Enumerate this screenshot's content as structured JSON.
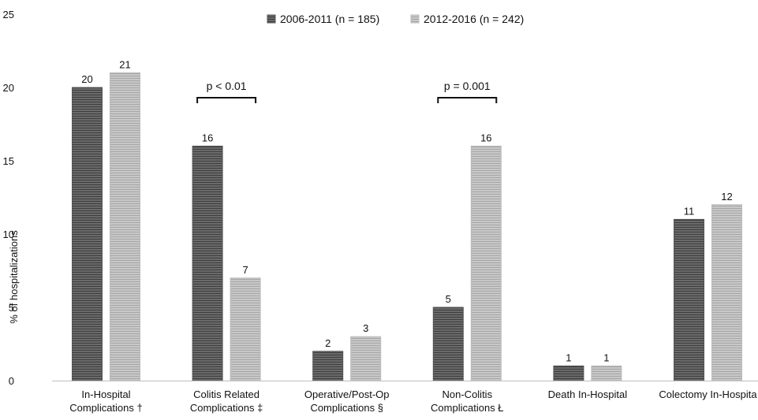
{
  "chart_data": {
    "type": "bar",
    "title": "",
    "xlabel": "",
    "ylabel": "% of hospitalizations",
    "ylim": [
      0,
      25
    ],
    "yticks": [
      0,
      5,
      10,
      15,
      20,
      25
    ],
    "grid": false,
    "legend_position": "top-center",
    "categories": [
      [
        "In-Hospital",
        "Complications †"
      ],
      [
        "Colitis Related",
        "Complications ‡"
      ],
      [
        "Operative/Post-Op",
        "Complications §"
      ],
      [
        "Non-Colitis",
        "Complications Ł"
      ],
      [
        "Death In-Hospital"
      ],
      [
        "Colectomy In-Hospita"
      ]
    ],
    "series": [
      {
        "name": "2006-2011 (n = 185)",
        "values": [
          20,
          16,
          2,
          5,
          1,
          11
        ],
        "color": "#555555"
      },
      {
        "name": "2012-2016 (n = 242)",
        "values": [
          21,
          7,
          3,
          16,
          1,
          12
        ],
        "color": "#bbbbbb"
      }
    ],
    "annotations": [
      {
        "text": "p < 0.01",
        "category_index": 1,
        "level": 19.3
      },
      {
        "text": "p = 0.001",
        "category_index": 3,
        "level": 19.3
      }
    ]
  }
}
